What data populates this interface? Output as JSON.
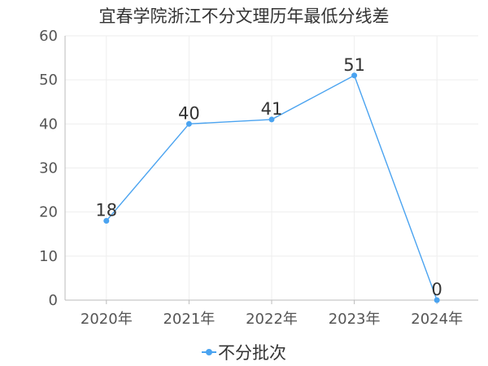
{
  "chart_data": {
    "type": "line",
    "title": "宜春学院浙江不分文理历年最低分线差",
    "categories": [
      "2020年",
      "2021年",
      "2022年",
      "2023年",
      "2024年"
    ],
    "series": [
      {
        "name": "不分批次",
        "values": [
          18,
          40,
          41,
          51,
          0
        ]
      }
    ],
    "ylim": [
      0,
      60
    ],
    "yticks": [
      "0",
      "10",
      "20",
      "30",
      "40",
      "50",
      "60"
    ],
    "grid": true,
    "legend": "bottom",
    "colors": {
      "series": "#4aa3f0",
      "grid": "#eeeeee",
      "axis": "#bbbbbb"
    }
  }
}
